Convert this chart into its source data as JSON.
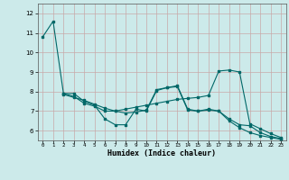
{
  "xlabel": "Humidex (Indice chaleur)",
  "bg_color": "#cceaea",
  "grid_color": "#c8a8a8",
  "line_color": "#006868",
  "xlim": [
    -0.5,
    23.5
  ],
  "ylim": [
    5.5,
    12.5
  ],
  "xticks": [
    0,
    1,
    2,
    3,
    4,
    5,
    6,
    7,
    8,
    9,
    10,
    11,
    12,
    13,
    14,
    15,
    16,
    17,
    18,
    19,
    20,
    21,
    22,
    23
  ],
  "yticks": [
    6,
    7,
    8,
    9,
    10,
    11,
    12
  ],
  "series1_x": [
    0,
    1,
    2,
    3,
    4,
    5,
    6,
    7,
    8,
    9,
    10,
    11,
    12,
    13,
    14,
    15,
    16,
    17,
    18,
    19,
    20,
    21,
    22,
    23
  ],
  "series1_y": [
    10.8,
    11.6,
    7.9,
    7.9,
    7.5,
    7.3,
    6.6,
    6.3,
    6.3,
    7.1,
    7.0,
    8.05,
    8.2,
    8.25,
    7.05,
    7.0,
    7.05,
    7.0,
    6.6,
    6.3,
    6.25,
    5.9,
    5.7,
    5.6
  ],
  "series2_x": [
    2,
    3,
    4,
    5,
    6,
    7,
    8,
    9,
    10,
    11,
    12,
    13,
    14,
    15,
    16,
    17,
    18,
    19,
    20,
    21,
    22,
    23
  ],
  "series2_y": [
    7.9,
    7.75,
    7.4,
    7.25,
    7.0,
    7.0,
    7.1,
    7.2,
    7.3,
    7.4,
    7.5,
    7.6,
    7.65,
    7.7,
    7.8,
    9.05,
    9.1,
    9.0,
    6.35,
    6.1,
    5.85,
    5.65
  ],
  "series3_x": [
    2,
    3,
    4,
    5,
    6,
    7,
    8,
    9,
    10,
    11,
    12,
    13,
    14,
    15,
    16,
    17,
    18,
    19,
    20,
    21,
    22,
    23
  ],
  "series3_y": [
    7.85,
    7.7,
    7.55,
    7.35,
    7.15,
    7.0,
    6.9,
    6.95,
    7.05,
    8.1,
    8.2,
    8.3,
    7.1,
    7.0,
    7.1,
    7.0,
    6.5,
    6.15,
    5.9,
    5.75,
    5.65,
    5.55
  ]
}
